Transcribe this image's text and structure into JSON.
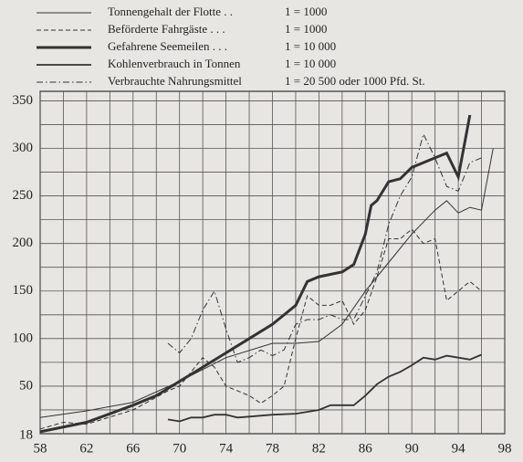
{
  "chart_data": {
    "type": "line",
    "x_prefix": "18",
    "xlim": [
      58,
      98
    ],
    "xticks": [
      58,
      62,
      66,
      70,
      74,
      78,
      82,
      86,
      90,
      94,
      98
    ],
    "xgrid": [
      60,
      64,
      68,
      72,
      76,
      80,
      84,
      88,
      92,
      96
    ],
    "ylim": [
      0,
      360
    ],
    "yticks": [
      50,
      100,
      150,
      200,
      250,
      300,
      350
    ],
    "ygrid": [
      25,
      75,
      125,
      175,
      225,
      275,
      325
    ],
    "grid": true,
    "series": [
      {
        "name": "Tonnengehalt der Flotte . .",
        "scale": "1 =  1000",
        "color": "#333",
        "width": 1,
        "dash": "none",
        "x": [
          58,
          62,
          66,
          70,
          74,
          78,
          80,
          82,
          84,
          86,
          88,
          90,
          92,
          93,
          94,
          95,
          96,
          97
        ],
        "values": [
          17,
          24,
          33,
          55,
          80,
          95,
          95,
          97,
          115,
          150,
          180,
          210,
          235,
          245,
          232,
          238,
          235,
          300
        ]
      },
      {
        "name": "Beförderte Fahrgäste . . .",
        "scale": "1 =  1000",
        "color": "#333",
        "width": 1,
        "dash": "5 3",
        "x": [
          58,
          60,
          62,
          66,
          69,
          70,
          71,
          72,
          73,
          74,
          76,
          77,
          78,
          79,
          80,
          81,
          82,
          83,
          84,
          85,
          86,
          87,
          88,
          89,
          90,
          91,
          92,
          93,
          94,
          95,
          96
        ],
        "values": [
          5,
          12,
          10,
          25,
          45,
          50,
          65,
          80,
          70,
          50,
          40,
          32,
          40,
          50,
          100,
          145,
          135,
          135,
          140,
          115,
          130,
          165,
          205,
          205,
          215,
          200,
          205,
          140,
          150,
          160,
          150
        ]
      },
      {
        "name": "Gefahrene Seemeilen . . .",
        "scale": "1 = 10 000",
        "color": "#333",
        "width": 3,
        "dash": "none",
        "x": [
          58,
          62,
          66,
          68,
          70,
          72,
          74,
          76,
          78,
          80,
          81,
          82,
          84,
          85,
          86,
          86.5,
          87,
          88,
          89,
          90,
          91,
          92,
          93,
          94,
          95
        ],
        "values": [
          2,
          12,
          30,
          40,
          55,
          70,
          85,
          100,
          115,
          135,
          160,
          165,
          170,
          178,
          210,
          240,
          245,
          265,
          268,
          280,
          285,
          290,
          295,
          270,
          335
        ]
      },
      {
        "name": "Kohlenverbrauch in Tonnen",
        "scale": "1 = 10 000",
        "color": "#333",
        "width": 1.8,
        "dash": "none",
        "x": [
          69,
          70,
          71,
          72,
          73,
          74,
          75,
          76,
          78,
          80,
          82,
          83,
          85,
          86,
          87,
          88,
          89,
          90,
          91,
          92,
          93,
          94,
          95,
          96
        ],
        "values": [
          15,
          13,
          17,
          17,
          20,
          20,
          17,
          18,
          20,
          21,
          25,
          30,
          30,
          40,
          52,
          60,
          65,
          72,
          80,
          78,
          82,
          80,
          78,
          83
        ]
      },
      {
        "name": "Verbrauchte Nahrungsmittel",
        "scale": "1 = 20 500 oder 1000 Pfd. St.",
        "color": "#333",
        "width": 1,
        "dash": "7 3 1.5 3",
        "x": [
          69,
          70,
          71,
          72,
          73,
          74,
          75,
          76,
          77,
          78,
          79,
          80,
          81,
          82,
          83,
          84,
          85,
          86,
          87,
          88,
          89,
          90,
          91,
          92,
          93,
          94,
          95,
          96
        ],
        "values": [
          95,
          85,
          100,
          130,
          150,
          110,
          75,
          80,
          88,
          82,
          88,
          115,
          120,
          120,
          125,
          120,
          120,
          145,
          170,
          220,
          250,
          270,
          315,
          290,
          260,
          255,
          285,
          290
        ]
      }
    ]
  }
}
